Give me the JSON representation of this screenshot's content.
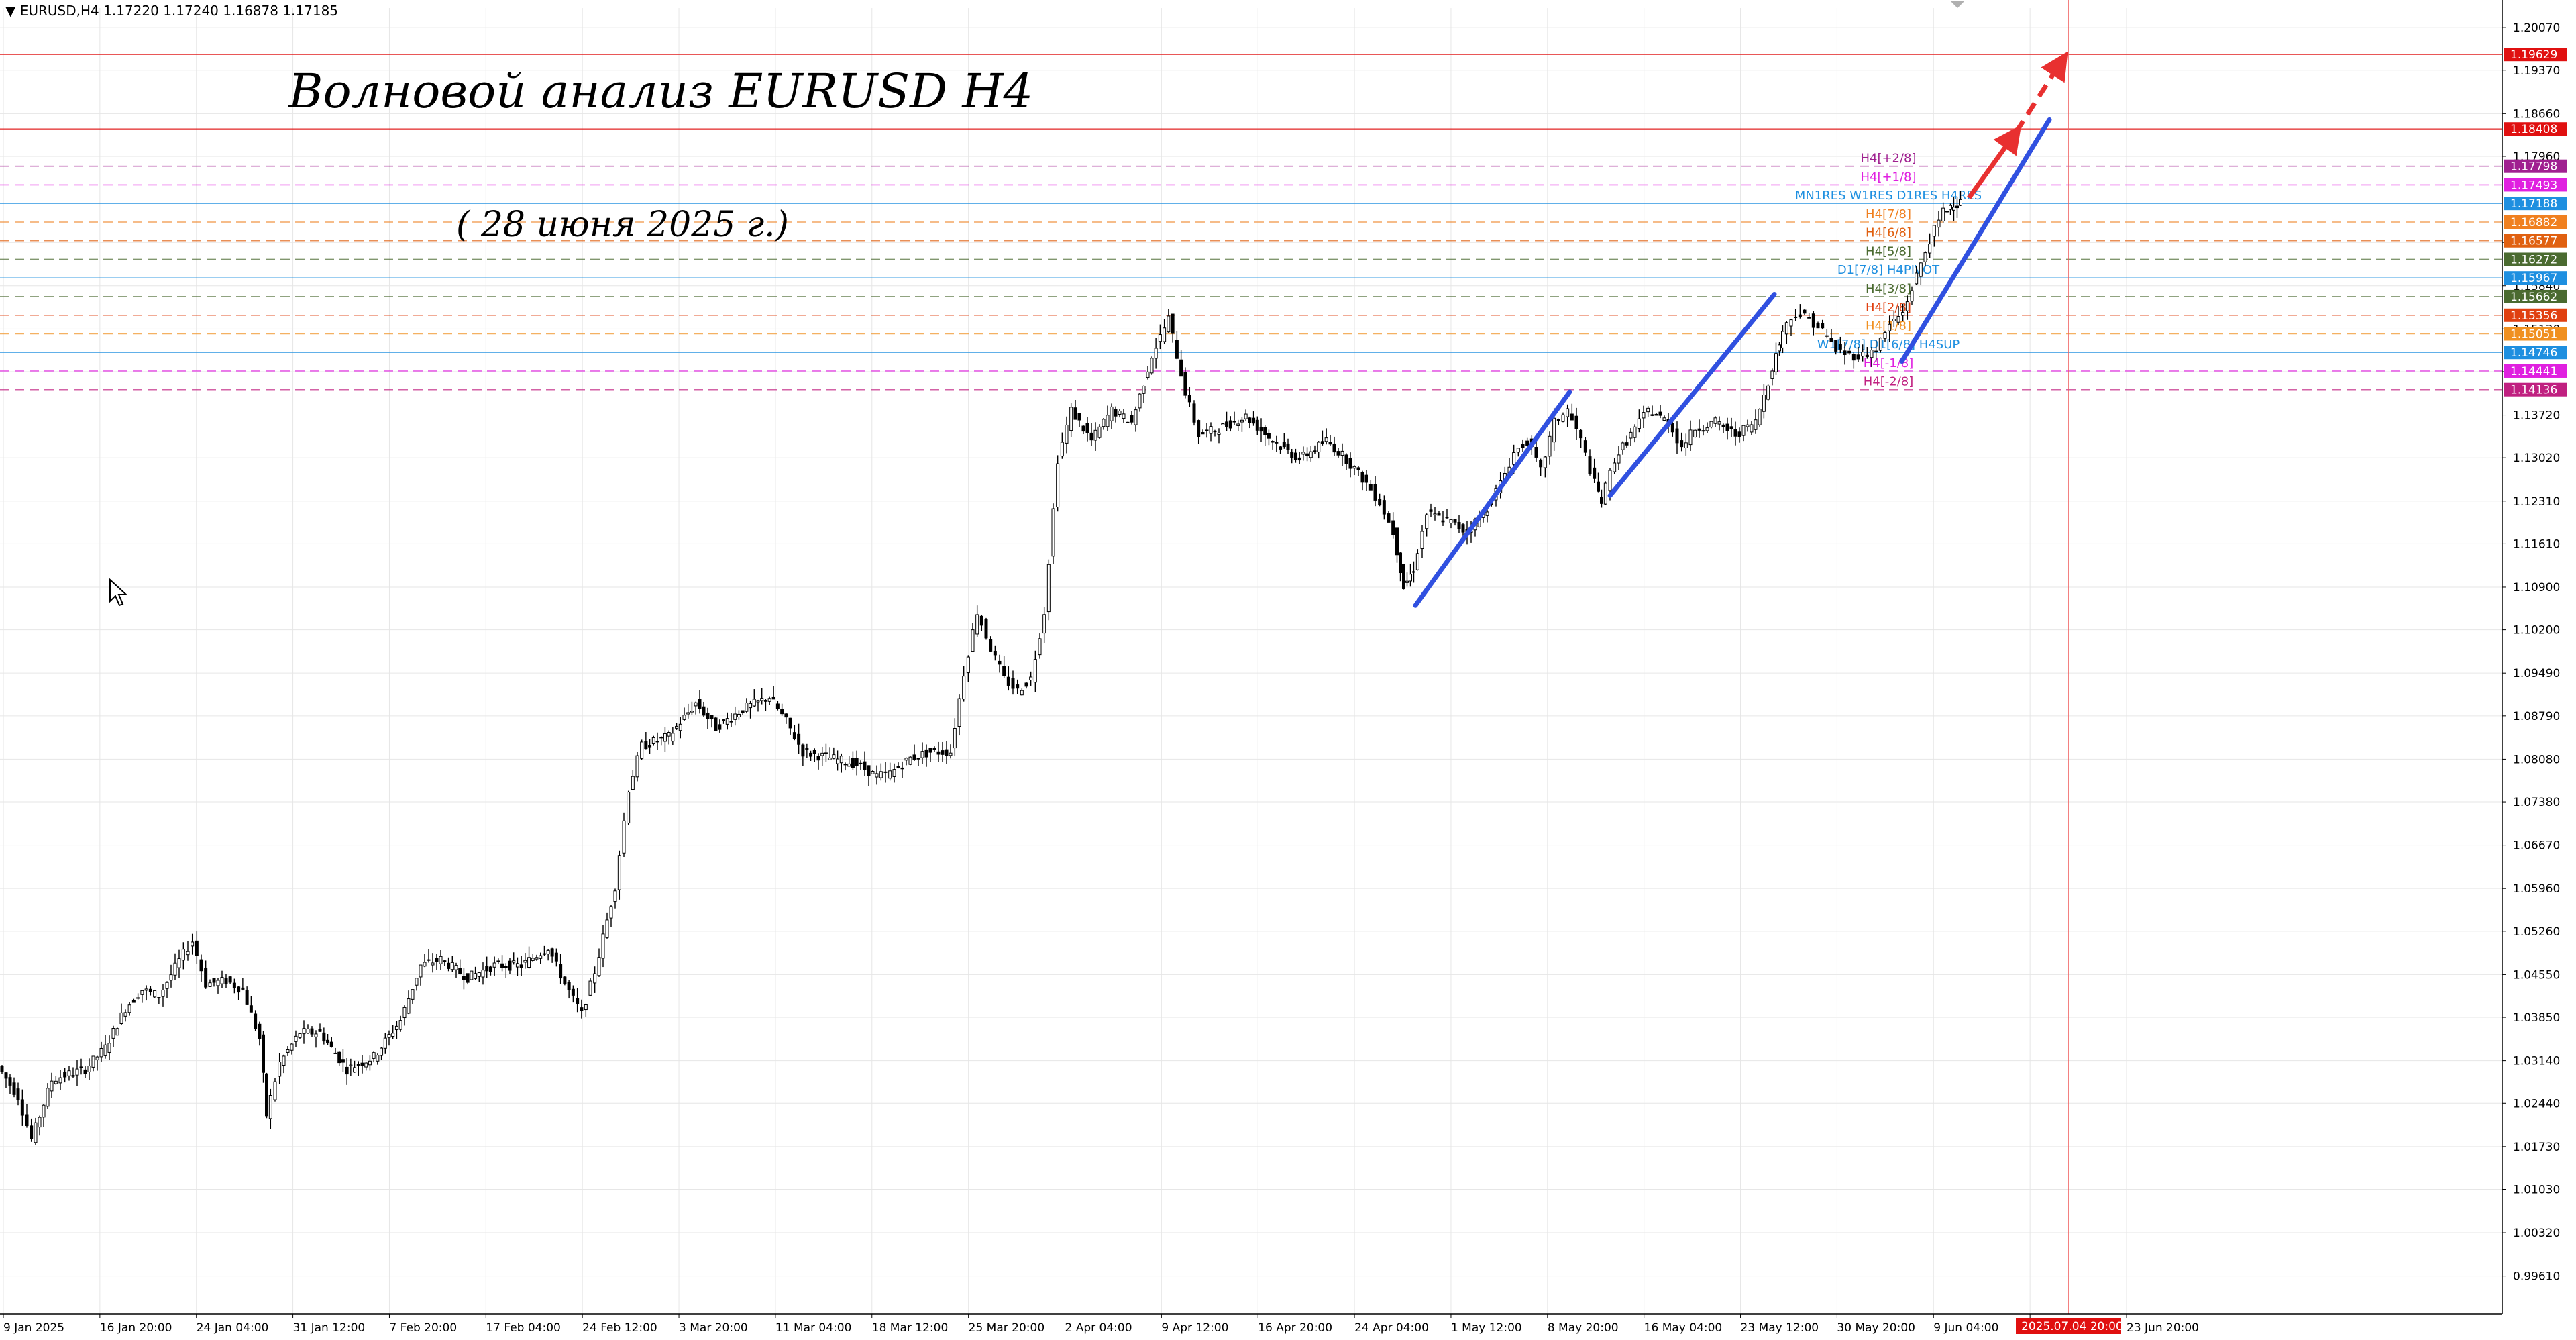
{
  "header": {
    "menu_icon": "triangle-down-icon",
    "symbol": "EURUSD,H4",
    "ohlc": "1.17220 1.17240 1.16878 1.17185"
  },
  "annotations": {
    "title": "Волновой анализ EURUSD H4",
    "subtitle": "( 28 июня 2025 г.)"
  },
  "colors": {
    "grid": "#e6e6e6",
    "candle": "#000000",
    "channel": "#3050e0",
    "arrow": "#e83030",
    "resistance": "#e02020",
    "pivot": "#2f86d6",
    "upper": "#d020d0",
    "mid": "#e07820",
    "lower": "#4a6a30"
  },
  "chart_data": {
    "type": "candlestick",
    "symbol": "EURUSD",
    "timeframe": "H4",
    "ylim": [
      0.9899,
      1.2039
    ],
    "y_ticks": [
      "1.20070",
      "1.19370",
      "1.18660",
      "1.17960",
      "1.16550",
      "1.15840",
      "1.15130",
      "1.14430",
      "1.13720",
      "1.13020",
      "1.12310",
      "1.11610",
      "1.10900",
      "1.10200",
      "1.09490",
      "1.08790",
      "1.08080",
      "1.07380",
      "1.06670",
      "1.05960",
      "1.05260",
      "1.04550",
      "1.03850",
      "1.03140",
      "1.02440",
      "1.01730",
      "1.01030",
      "1.00320",
      "0.99610"
    ],
    "x_ticks": [
      "9 Jan 2025",
      "16 Jan 20:00",
      "24 Jan 04:00",
      "31 Jan 12:00",
      "7 Feb 20:00",
      "17 Feb 04:00",
      "24 Feb 12:00",
      "3 Mar 20:00",
      "11 Mar 04:00",
      "18 Mar 12:00",
      "25 Mar 20:00",
      "2 Apr 04:00",
      "9 Apr 12:00",
      "16 Apr 20:00",
      "24 Apr 04:00",
      "1 May 12:00",
      "8 May 20:00",
      "16 May 04:00",
      "23 May 12:00",
      "30 May 20:00",
      "9 Jun 04:00",
      "16 Jun 12:00",
      "23 Jun 20:00"
    ],
    "x_highlight": "2025.07.04 20:00",
    "close_path": [
      [
        0,
        1.0305
      ],
      [
        30,
        1.0255
      ],
      [
        50,
        1.0185
      ],
      [
        80,
        1.0282
      ],
      [
        100,
        1.029
      ],
      [
        130,
        1.03
      ],
      [
        160,
        1.0335
      ],
      [
        190,
        1.04
      ],
      [
        215,
        1.043
      ],
      [
        240,
        1.042
      ],
      [
        270,
        1.0478
      ],
      [
        290,
        1.051
      ],
      [
        310,
        1.044
      ],
      [
        340,
        1.0445
      ],
      [
        365,
        1.043
      ],
      [
        390,
        1.035
      ],
      [
        400,
        1.0225
      ],
      [
        420,
        1.031
      ],
      [
        450,
        1.036
      ],
      [
        480,
        1.036
      ],
      [
        520,
        1.03
      ],
      [
        560,
        1.032
      ],
      [
        600,
        1.038
      ],
      [
        630,
        1.047
      ],
      [
        660,
        1.048
      ],
      [
        700,
        1.045
      ],
      [
        740,
        1.047
      ],
      [
        780,
        1.047
      ],
      [
        820,
        1.05
      ],
      [
        845,
        1.044
      ],
      [
        870,
        1.039
      ],
      [
        890,
        1.046
      ],
      [
        920,
        1.06
      ],
      [
        940,
        1.076
      ],
      [
        960,
        1.083
      ],
      [
        1000,
        1.0845
      ],
      [
        1040,
        1.09
      ],
      [
        1070,
        1.086
      ],
      [
        1110,
        1.089
      ],
      [
        1150,
        1.091
      ],
      [
        1175,
        1.087
      ],
      [
        1200,
        1.082
      ],
      [
        1240,
        1.081
      ],
      [
        1280,
        1.08
      ],
      [
        1310,
        1.078
      ],
      [
        1330,
        1.0785
      ],
      [
        1360,
        1.081
      ],
      [
        1390,
        1.082
      ],
      [
        1420,
        1.082
      ],
      [
        1440,
        1.095
      ],
      [
        1460,
        1.105
      ],
      [
        1480,
        1.099
      ],
      [
        1500,
        1.094
      ],
      [
        1520,
        1.092
      ],
      [
        1540,
        1.094
      ],
      [
        1560,
        1.105
      ],
      [
        1580,
        1.13
      ],
      [
        1600,
        1.138
      ],
      [
        1630,
        1.133
      ],
      [
        1660,
        1.138
      ],
      [
        1690,
        1.136
      ],
      [
        1720,
        1.147
      ],
      [
        1745,
        1.153
      ],
      [
        1770,
        1.141
      ],
      [
        1790,
        1.134
      ],
      [
        1820,
        1.135
      ],
      [
        1860,
        1.137
      ],
      [
        1900,
        1.133
      ],
      [
        1940,
        1.13
      ],
      [
        1980,
        1.133
      ],
      [
        2010,
        1.13
      ],
      [
        2040,
        1.126
      ],
      [
        2060,
        1.123
      ],
      [
        2080,
        1.118
      ],
      [
        2095,
        1.109
      ],
      [
        2110,
        1.112
      ],
      [
        2130,
        1.121
      ],
      [
        2160,
        1.12
      ],
      [
        2190,
        1.118
      ],
      [
        2220,
        1.122
      ],
      [
        2240,
        1.126
      ],
      [
        2260,
        1.131
      ],
      [
        2280,
        1.133
      ],
      [
        2300,
        1.128
      ],
      [
        2320,
        1.136
      ],
      [
        2340,
        1.138
      ],
      [
        2360,
        1.133
      ],
      [
        2380,
        1.126
      ],
      [
        2390,
        1.123
      ],
      [
        2410,
        1.13
      ],
      [
        2440,
        1.135
      ],
      [
        2460,
        1.138
      ],
      [
        2490,
        1.136
      ],
      [
        2510,
        1.132
      ],
      [
        2530,
        1.135
      ],
      [
        2560,
        1.136
      ],
      [
        2590,
        1.134
      ],
      [
        2620,
        1.136
      ],
      [
        2645,
        1.145
      ],
      [
        2660,
        1.151
      ],
      [
        2680,
        1.154
      ],
      [
        2700,
        1.153
      ],
      [
        2720,
        1.151
      ],
      [
        2740,
        1.148
      ],
      [
        2760,
        1.147
      ],
      [
        2780,
        1.147
      ],
      [
        2800,
        1.148
      ],
      [
        2820,
        1.152
      ],
      [
        2840,
        1.154
      ],
      [
        2860,
        1.16
      ],
      [
        2880,
        1.166
      ],
      [
        2900,
        1.1705
      ],
      [
        2915,
        1.172
      ],
      [
        2925,
        1.1719
      ]
    ],
    "candles_per_segment": 2,
    "trendlines": [
      {
        "from": [
          2110,
          1.106
        ],
        "to": [
          2340,
          1.141
        ]
      },
      {
        "from": [
          2400,
          1.124
        ],
        "to": [
          2645,
          1.157
        ]
      },
      {
        "from": [
          2835,
          1.146
        ],
        "to": [
          3055,
          1.1856
        ]
      }
    ],
    "arrows": [
      {
        "style": "solid",
        "from": [
          2935,
          1.1728
        ],
        "to": [
          3005,
          1.1835
        ]
      },
      {
        "style": "dashed",
        "from": [
          3005,
          1.1835
        ],
        "to": [
          3075,
          1.1955
        ]
      }
    ],
    "levels": [
      {
        "value": 1.19629,
        "badge": "1.19629",
        "color": "#e01010",
        "style": "solid"
      },
      {
        "value": 1.18408,
        "badge": "1.18408",
        "color": "#e01010",
        "style": "solid"
      },
      {
        "value": 1.17798,
        "badge": "1.17798",
        "color": "#a02090",
        "style": "dashed",
        "label": "H4[+2/8]"
      },
      {
        "value": 1.17493,
        "badge": "1.17493",
        "color": "#e020e0",
        "style": "dashed",
        "label": "H4[+1/8]"
      },
      {
        "value": 1.17188,
        "badge": "1.17188",
        "color": "#1e8fe0",
        "style": "solid",
        "label": "MN1RES W1RES D1RES H4RES"
      },
      {
        "value": 1.16882,
        "badge": "1.16882",
        "color": "#f08020",
        "style": "dashed",
        "label": "H4[7/8]"
      },
      {
        "value": 1.16577,
        "badge": "1.16577",
        "color": "#e06010",
        "style": "dashed",
        "label": "H4[6/8]"
      },
      {
        "value": 1.16272,
        "badge": "1.16272",
        "color": "#4a6a30",
        "style": "dashed",
        "label": "H4[5/8]"
      },
      {
        "value": 1.15967,
        "badge": "1.15967",
        "color": "#1e8fe0",
        "style": "solid",
        "label": "D1[7/8] H4PIVOT"
      },
      {
        "value": 1.15662,
        "badge": "1.15662",
        "color": "#4a6a30",
        "style": "dashed",
        "label": "H4[3/8]"
      },
      {
        "value": 1.15356,
        "badge": "1.15356",
        "color": "#e04010",
        "style": "dashed",
        "label": "H4[2/8]"
      },
      {
        "value": 1.15051,
        "badge": "1.15051",
        "color": "#f09020",
        "style": "dashed",
        "label": "H4[1/8]"
      },
      {
        "value": 1.14746,
        "badge": "1.14746",
        "color": "#1e8fe0",
        "style": "solid",
        "label": "W1[7/8] D1[6/8] H4SUP"
      },
      {
        "value": 1.14441,
        "badge": "1.14441",
        "color": "#e020e0",
        "style": "dashed",
        "label": "H4[-1/8]"
      },
      {
        "value": 1.14136,
        "badge": "1.14136",
        "color": "#c02080",
        "style": "dashed",
        "label": "H4[-2/8]"
      }
    ]
  }
}
